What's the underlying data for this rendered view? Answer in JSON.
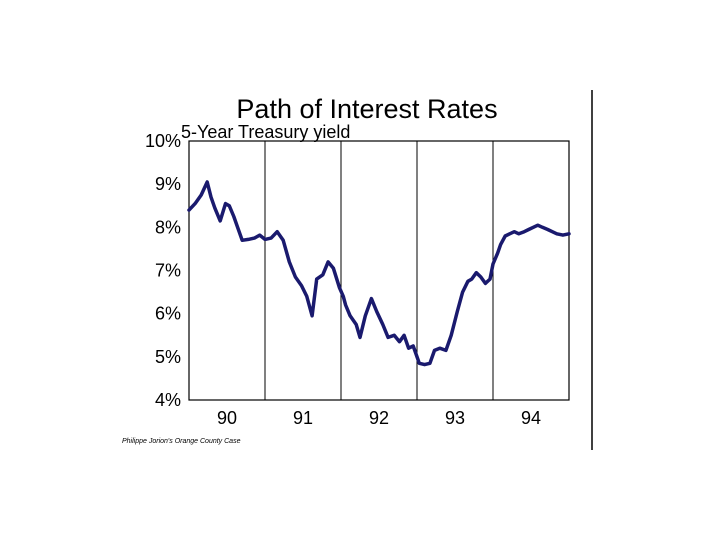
{
  "chart_data": {
    "type": "line",
    "title": "Path of Interest Rates",
    "subtitle": "5-Year Treasury yield",
    "xlabel": "",
    "ylabel": "",
    "xlim": [
      1989.5,
      1994.5
    ],
    "ylim": [
      4,
      10
    ],
    "y_tick_labels": [
      "4%",
      "5%",
      "6%",
      "7%",
      "8%",
      "9%",
      "10%"
    ],
    "y_ticks": [
      4,
      5,
      6,
      7,
      8,
      9,
      10
    ],
    "x_tick_labels": [
      "90",
      "91",
      "92",
      "93",
      "94"
    ],
    "x_ticks": [
      1990,
      1991,
      1992,
      1993,
      1994
    ],
    "vertical_lines": [
      1990.5,
      1991.5,
      1992.5,
      1993.5
    ],
    "grid": false,
    "line_color": "#1a1a6e",
    "series": [
      {
        "x": [
          1989.5,
          1989.58,
          1989.66,
          1989.74,
          1989.79,
          1989.84,
          1989.91,
          1989.98,
          1990.03,
          1990.09,
          1990.14,
          1990.2,
          1990.28,
          1990.36,
          1990.43,
          1990.5,
          1990.58,
          1990.66,
          1990.74,
          1990.82,
          1990.9,
          1990.98,
          1991.05,
          1991.12,
          1991.18,
          1991.26,
          1991.33,
          1991.4,
          1991.48,
          1991.53,
          1991.56,
          1991.62,
          1991.7,
          1991.75,
          1991.82,
          1991.9,
          1991.97,
          1992.05,
          1992.12,
          1992.2,
          1992.27,
          1992.33,
          1992.39,
          1992.45,
          1992.53,
          1992.6,
          1992.67,
          1992.73,
          1992.8,
          1992.88,
          1992.95,
          1993.03,
          1993.1,
          1993.17,
          1993.22,
          1993.28,
          1993.34,
          1993.4,
          1993.46,
          1993.5,
          1993.56,
          1993.6,
          1993.66,
          1993.72,
          1993.78,
          1993.84,
          1993.91,
          1993.97,
          1994.03,
          1994.09,
          1994.15,
          1994.22,
          1994.28,
          1994.34,
          1994.42,
          1994.5
        ],
        "y": [
          8.4,
          8.55,
          8.75,
          9.05,
          8.7,
          8.45,
          8.15,
          8.55,
          8.5,
          8.25,
          8.0,
          7.7,
          7.72,
          7.75,
          7.82,
          7.72,
          7.75,
          7.9,
          7.7,
          7.2,
          6.85,
          6.65,
          6.4,
          5.95,
          6.8,
          6.9,
          7.2,
          7.05,
          6.6,
          6.4,
          6.2,
          5.95,
          5.75,
          5.45,
          5.95,
          6.35,
          6.05,
          5.75,
          5.45,
          5.5,
          5.35,
          5.5,
          5.2,
          5.25,
          4.85,
          4.82,
          4.85,
          5.15,
          5.2,
          5.15,
          5.5,
          6.05,
          6.5,
          6.75,
          6.8,
          6.95,
          6.85,
          6.7,
          6.8,
          7.15,
          7.4,
          7.6,
          7.8,
          7.85,
          7.9,
          7.85,
          7.9,
          7.95,
          8.0,
          8.05,
          8.0,
          7.95,
          7.9,
          7.85,
          7.82,
          7.85
        ]
      }
    ]
  },
  "credit": "Philippe Jorion's Orange County Case"
}
